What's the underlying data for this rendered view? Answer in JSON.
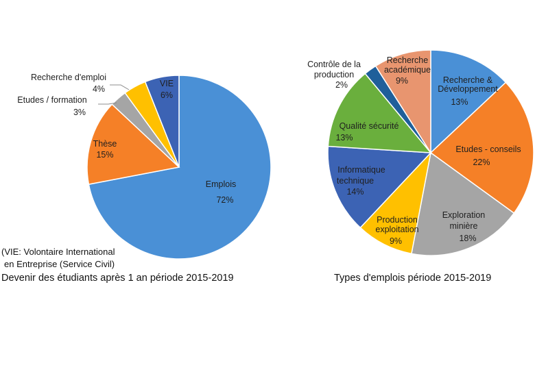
{
  "chart_data": [
    {
      "type": "pie",
      "title": "Devenir des étudiants après 1 an période 2015-2019",
      "note_lines": [
        "(VIE: Volontaire International",
        "en Entreprise (Service Civil)"
      ],
      "slices": [
        {
          "name": "Emplois",
          "value": 72,
          "pct_label": "72%",
          "color": "#4A90D6"
        },
        {
          "name": "Thèse",
          "value": 15,
          "pct_label": "15%",
          "color": "#F58027"
        },
        {
          "name": "Etudes / formation",
          "value": 3,
          "pct_label": "3%",
          "color": "#A5A5A5"
        },
        {
          "name": "Recherche d'emploi",
          "value": 4,
          "pct_label": "4%",
          "color": "#FFC000"
        },
        {
          "name": "VIE",
          "value": 6,
          "pct_label": "6%",
          "color": "#3C63B4"
        }
      ]
    },
    {
      "type": "pie",
      "title": "Types d'emplois période 2015-2019",
      "slices": [
        {
          "name": "Recherche & Développement",
          "name_lines": [
            "Recherche &",
            "Développement"
          ],
          "value": 13,
          "pct_label": "13%",
          "color": "#4A90D6"
        },
        {
          "name": "Etudes  - conseils",
          "name_lines": [
            "Etudes  - conseils"
          ],
          "value": 22,
          "pct_label": "22%",
          "color": "#F58027"
        },
        {
          "name": "Exploration minière",
          "name_lines": [
            "Exploration",
            "minière"
          ],
          "value": 18,
          "pct_label": "18%",
          "color": "#A5A5A5"
        },
        {
          "name": "Production exploitation",
          "name_lines": [
            "Production",
            "exploitation"
          ],
          "value": 9,
          "pct_label": "9%",
          "color": "#FFC000"
        },
        {
          "name": "Informatique technique",
          "name_lines": [
            "Informatique",
            "technique"
          ],
          "value": 14,
          "pct_label": "14%",
          "color": "#3C63B4"
        },
        {
          "name": "Qualité sécurité",
          "name_lines": [
            "Qualité sécurité"
          ],
          "value": 13,
          "pct_label": "13%",
          "color": "#6AAF3D"
        },
        {
          "name": "Contrôle de la production",
          "name_lines": [
            "Contrôle de la",
            "production"
          ],
          "value": 2,
          "pct_label": "2%",
          "color": "#1F5F9A"
        },
        {
          "name": "Recherche académique",
          "name_lines": [
            "Recherche",
            "académique"
          ],
          "value": 9,
          "pct_label": "9%",
          "color": "#E8956F"
        }
      ]
    }
  ]
}
